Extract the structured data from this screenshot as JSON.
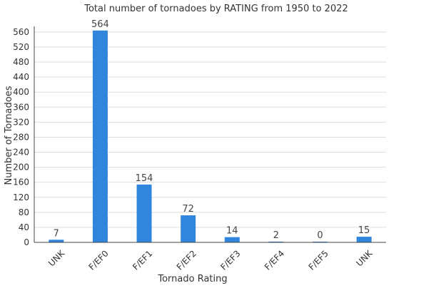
{
  "chart_data": {
    "type": "bar",
    "title": "Total number of tornadoes by RATING from 1950 to 2022",
    "xlabel": "Tornado Rating",
    "ylabel": "Number of Tornadoes",
    "categories": [
      "UNK",
      "F/EF0",
      "F/EF1",
      "F/EF2",
      "F/EF3",
      "F/EF4",
      "F/EF5",
      "UNK"
    ],
    "values": [
      7,
      564,
      154,
      72,
      14,
      2,
      0,
      15
    ],
    "ylim": [
      0,
      575
    ],
    "yticks": [
      0,
      40,
      80,
      120,
      160,
      200,
      240,
      280,
      320,
      360,
      400,
      440,
      480,
      520,
      560
    ],
    "grid": true,
    "legend": "none",
    "bar_color": "#2f86dc"
  }
}
